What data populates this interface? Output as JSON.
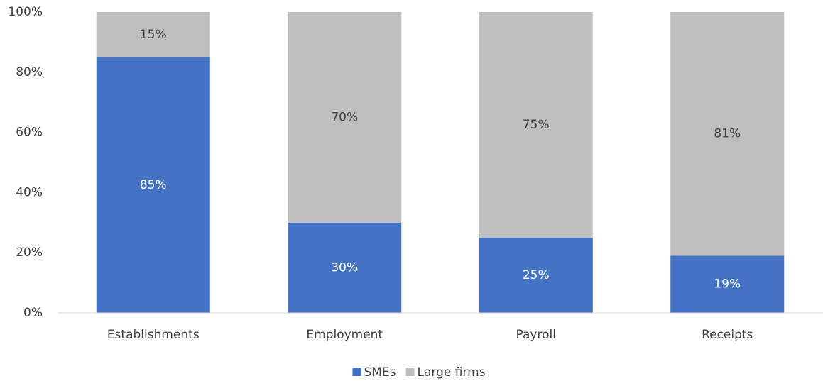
{
  "chart_data": {
    "type": "stacked_bar",
    "categories": [
      "Establishments",
      "Employment",
      "Payroll",
      "Receipts"
    ],
    "series": [
      {
        "name": "SMEs",
        "color": "#4472c4",
        "values": [
          85,
          30,
          25,
          19
        ],
        "value_labels": [
          "85%",
          "30%",
          "25%",
          "19%"
        ]
      },
      {
        "name": "Large firms",
        "color": "#bfbfbf",
        "values": [
          15,
          70,
          75,
          81
        ],
        "value_labels": [
          "15%",
          "70%",
          "75%",
          "81%"
        ]
      }
    ],
    "ylim": [
      0,
      100
    ],
    "yticks": [
      {
        "value": 0,
        "label": "0%"
      },
      {
        "value": 20,
        "label": "20%"
      },
      {
        "value": 40,
        "label": "40%"
      },
      {
        "value": 60,
        "label": "60%"
      },
      {
        "value": 80,
        "label": "80%"
      },
      {
        "value": 100,
        "label": "100%"
      }
    ],
    "legend": "bottom"
  }
}
